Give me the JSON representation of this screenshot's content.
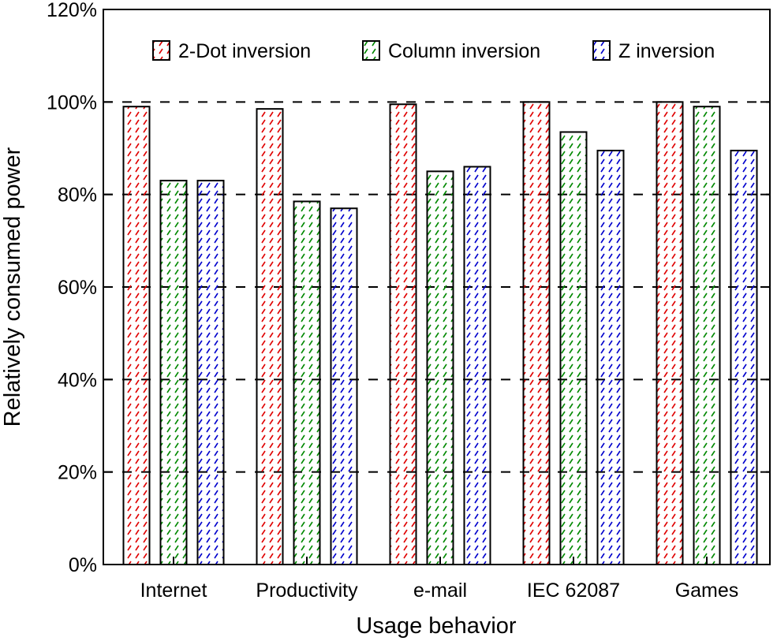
{
  "chart_data": {
    "type": "bar",
    "xlabel": "Usage behavior",
    "ylabel": "Relatively consumed power",
    "ylim": [
      0,
      120
    ],
    "yticks": [
      "0%",
      "20%",
      "40%",
      "60%",
      "80%",
      "100%",
      "120%"
    ],
    "grid": "dashed horizontal",
    "legend_position": "top",
    "categories": [
      "Internet",
      "Productivity",
      "e-mail",
      "IEC 62087",
      "Games"
    ],
    "series": [
      {
        "name": "2-Dot inversion",
        "color": "#e00000",
        "pattern": "hatched",
        "values": [
          99,
          98.5,
          99.5,
          100,
          100
        ]
      },
      {
        "name": "Column inversion",
        "color": "#008800",
        "pattern": "hatched",
        "values": [
          83,
          78.5,
          85,
          93.5,
          99
        ]
      },
      {
        "name": "Z inversion",
        "color": "#0000cc",
        "pattern": "hatched",
        "values": [
          83,
          77,
          86,
          89.5,
          89.5
        ]
      }
    ]
  }
}
